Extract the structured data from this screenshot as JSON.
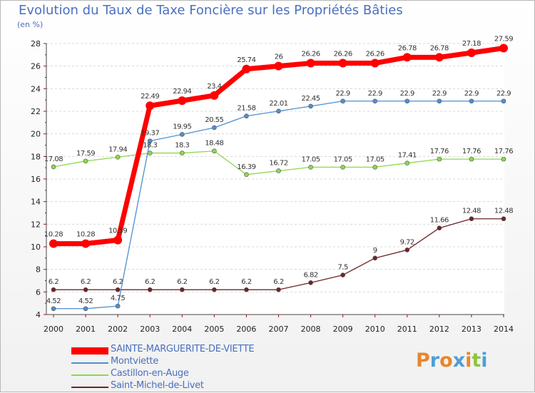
{
  "chart_data": {
    "type": "line",
    "title": "Evolution du Taux de Taxe Foncière sur les Propriétés Bâties",
    "ylabel": "(en %)",
    "xlabel": "",
    "categories": [
      "2000",
      "2001",
      "2002",
      "2003",
      "2004",
      "2005",
      "2006",
      "2007",
      "2008",
      "2009",
      "2010",
      "2011",
      "2012",
      "2013",
      "2014"
    ],
    "ylim": [
      4,
      28
    ],
    "yticks": [
      4,
      6,
      8,
      10,
      12,
      14,
      16,
      18,
      20,
      22,
      24,
      26,
      28
    ],
    "series": [
      {
        "name": "SAINTE-MARGUERITE-DE-VIETTE",
        "color": "#ff0000",
        "labels": [
          "10.28",
          "10.28",
          "10.59",
          "22.49",
          "22.94",
          "23.4",
          "25.74",
          "26",
          "26.26",
          "26.26",
          "26.26",
          "26.78",
          "26.78",
          "27.18",
          "27.59"
        ],
        "values": [
          10.28,
          10.28,
          10.59,
          22.49,
          22.94,
          23.4,
          25.74,
          26,
          26.26,
          26.26,
          26.26,
          26.78,
          26.78,
          27.18,
          27.59
        ]
      },
      {
        "name": "Montviette",
        "color": "#4f8fd1",
        "labels": [
          "4.52",
          "4.52",
          "4.75",
          "19.37",
          "19.95",
          "20.55",
          "21.58",
          "22.01",
          "22.45",
          "22.9",
          "22.9",
          "22.9",
          "22.9",
          "22.9",
          "22.9"
        ],
        "values": [
          4.52,
          4.52,
          4.75,
          19.37,
          19.95,
          20.55,
          21.58,
          22.01,
          22.45,
          22.9,
          22.9,
          22.9,
          22.9,
          22.9,
          22.9
        ]
      },
      {
        "name": "Castillon-en-Auge",
        "color": "#8ed84c",
        "labels": [
          "17.08",
          "17.59",
          "17.94",
          "18.3",
          "18.3",
          "18.48",
          "16.39",
          "16.72",
          "17.05",
          "17.05",
          "17.05",
          "17.41",
          "17.76",
          "17.76",
          "17.76"
        ],
        "values": [
          17.08,
          17.59,
          17.94,
          18.3,
          18.3,
          18.48,
          16.39,
          16.72,
          17.05,
          17.05,
          17.05,
          17.41,
          17.76,
          17.76,
          17.76
        ]
      },
      {
        "name": "Saint-Michel-de-Livet",
        "color": "#6e2424",
        "labels": [
          "6.2",
          "6.2",
          "6.2",
          "6.2",
          "6.2",
          "6.2",
          "6.2",
          "6.2",
          "6.82",
          "7.5",
          "9",
          "9.72",
          "11.66",
          "12.48",
          "12.48"
        ],
        "values": [
          6.2,
          6.2,
          6.2,
          6.2,
          6.2,
          6.2,
          6.2,
          6.2,
          6.82,
          7.5,
          9,
          9.72,
          11.66,
          12.48,
          12.48
        ]
      }
    ]
  },
  "brand": {
    "letters": [
      "P",
      "r",
      "o",
      "x",
      "i",
      "t",
      "i"
    ],
    "colors": [
      "#e9862a",
      "#4e9fd6",
      "#e9862a",
      "#4e9fd6",
      "#e9862a",
      "#8cc63f",
      "#4e9fd6"
    ]
  }
}
